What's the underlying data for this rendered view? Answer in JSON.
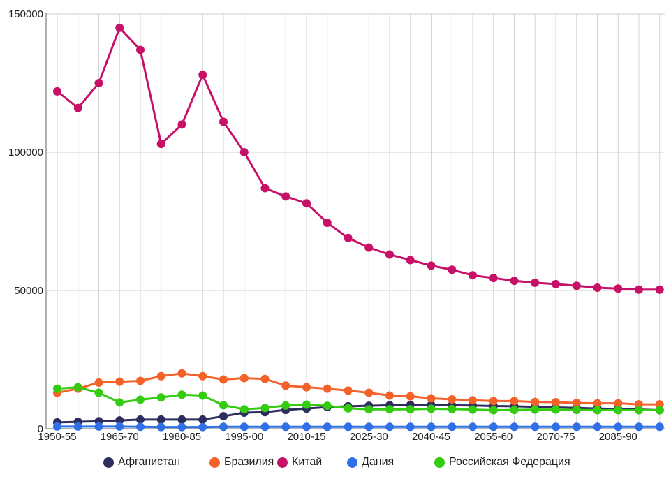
{
  "chart_data": {
    "type": "line",
    "title": "",
    "xlabel": "",
    "ylabel": "",
    "ylim": [
      0,
      150000
    ],
    "yticks": [
      0,
      50000,
      100000,
      150000
    ],
    "grid": true,
    "legend_position": "bottom",
    "categories": [
      "1950-55",
      "1955-60",
      "1960-65",
      "1965-70",
      "1970-75",
      "1975-80",
      "1980-85",
      "1985-90",
      "1990-95",
      "1995-00",
      "2000-05",
      "2005-10",
      "2010-15",
      "2015-20",
      "2020-25",
      "2025-30",
      "2030-35",
      "2035-40",
      "2040-45",
      "2045-50",
      "2050-55",
      "2055-60",
      "2060-65",
      "2065-70",
      "2070-75",
      "2075-80",
      "2080-85",
      "2085-90",
      "2090-95",
      "2095-00"
    ],
    "x_tick_labels": [
      "1950-55",
      "1965-70",
      "1980-85",
      "1995-00",
      "2010-15",
      "2025-30",
      "2040-45",
      "2055-60",
      "2070-75",
      "2085-90"
    ],
    "series": [
      {
        "name": "Афганистан",
        "color": "#2e2e5e",
        "values": [
          2300,
          2500,
          2700,
          3000,
          3300,
          3300,
          3300,
          3300,
          4500,
          5800,
          6000,
          6800,
          7300,
          7800,
          8100,
          8300,
          8500,
          8600,
          8600,
          8500,
          8400,
          8200,
          8100,
          7900,
          7700,
          7500,
          7300,
          7100,
          6900,
          6700
        ]
      },
      {
        "name": "Бразилия",
        "color": "#f4622a",
        "values": [
          13000,
          14500,
          16700,
          17000,
          17300,
          19000,
          20000,
          19000,
          17800,
          18300,
          18000,
          15600,
          15000,
          14500,
          13800,
          13000,
          12000,
          11700,
          11000,
          10600,
          10300,
          10000,
          10000,
          9700,
          9600,
          9300,
          9200,
          9200,
          8800,
          8800
        ]
      },
      {
        "name": "Китай",
        "color": "#c71068",
        "values": [
          122000,
          116000,
          125000,
          145000,
          137000,
          103000,
          110000,
          128000,
          111000,
          100000,
          87000,
          84000,
          81500,
          74500,
          69000,
          65500,
          63000,
          61000,
          59000,
          57500,
          55500,
          54500,
          53500,
          52800,
          52300,
          51700,
          51000,
          50700,
          50300,
          50300
        ]
      },
      {
        "name": "Дания",
        "color": "#2f6fe8",
        "values": [
          800,
          800,
          800,
          800,
          700,
          600,
          600,
          600,
          700,
          700,
          700,
          700,
          700,
          700,
          700,
          700,
          700,
          700,
          700,
          700,
          700,
          700,
          700,
          700,
          700,
          700,
          700,
          700,
          700,
          700
        ]
      },
      {
        "name": "Российская Федерация",
        "color": "#33cc11",
        "values": [
          14500,
          15000,
          13000,
          9500,
          10500,
          11300,
          12300,
          12000,
          8500,
          7000,
          7500,
          8400,
          8700,
          8300,
          7400,
          7000,
          7000,
          7000,
          7200,
          7100,
          6900,
          6700,
          6800,
          6900,
          6900,
          6800,
          6700,
          6700,
          6700,
          6700
        ]
      }
    ]
  }
}
